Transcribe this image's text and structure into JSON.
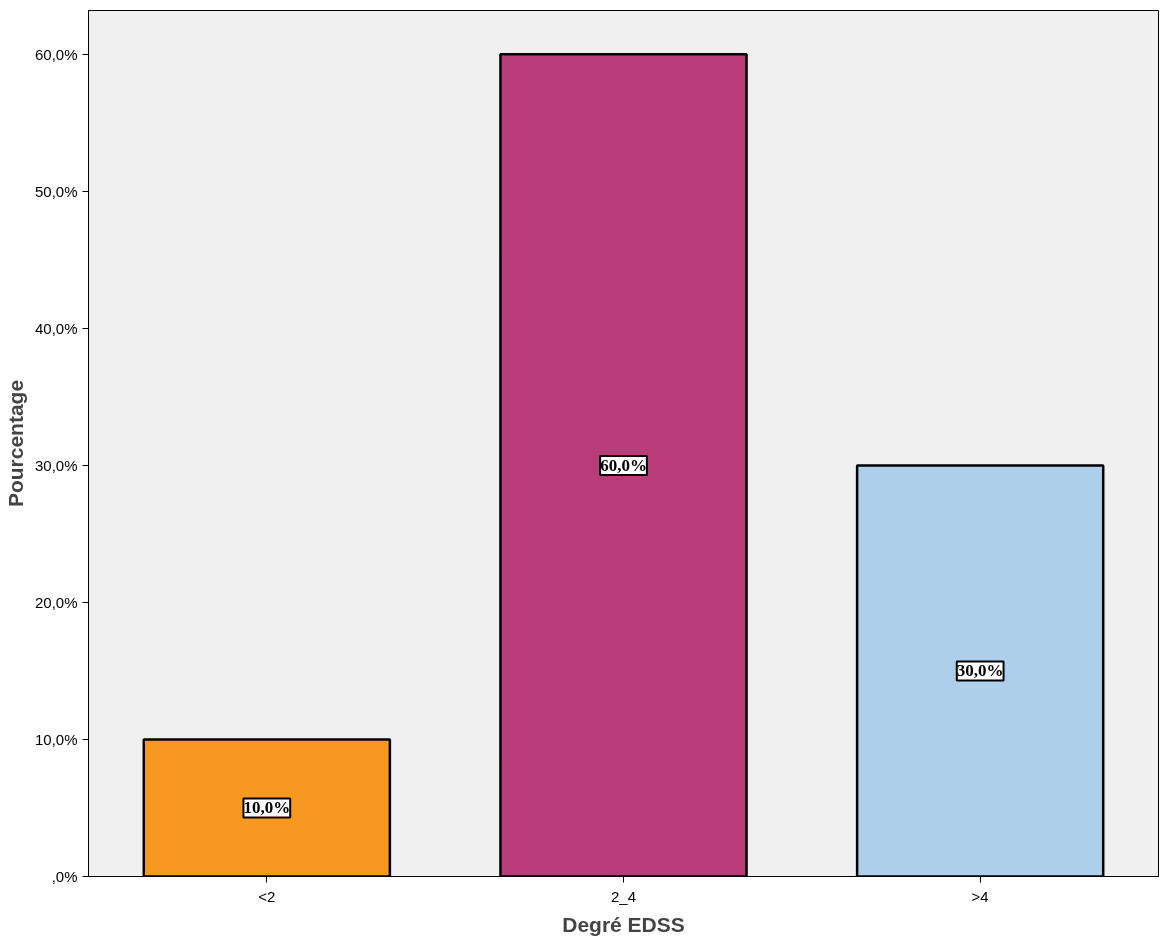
{
  "chart_data": {
    "type": "bar",
    "xlabel": "Degré EDSS",
    "ylabel": "Pourcentage",
    "categories": [
      "<2",
      "2_4",
      ">4"
    ],
    "values": [
      10,
      60,
      30
    ],
    "colors": [
      "#f7991f",
      "#b93d7a",
      "#aecfec"
    ],
    "value_labels": [
      "10,0%",
      "60,0%",
      "30,0%"
    ],
    "ylim": [
      0,
      63.2
    ],
    "yticks": [
      {
        "value": 0,
        "label": ",0%"
      },
      {
        "value": 10,
        "label": "10,0%"
      },
      {
        "value": 20,
        "label": "20,0%"
      },
      {
        "value": 30,
        "label": "30,0%"
      },
      {
        "value": 40,
        "label": "40,0%"
      },
      {
        "value": 50,
        "label": "50,0%"
      },
      {
        "value": 60,
        "label": "60,0%"
      }
    ],
    "grid": false
  }
}
